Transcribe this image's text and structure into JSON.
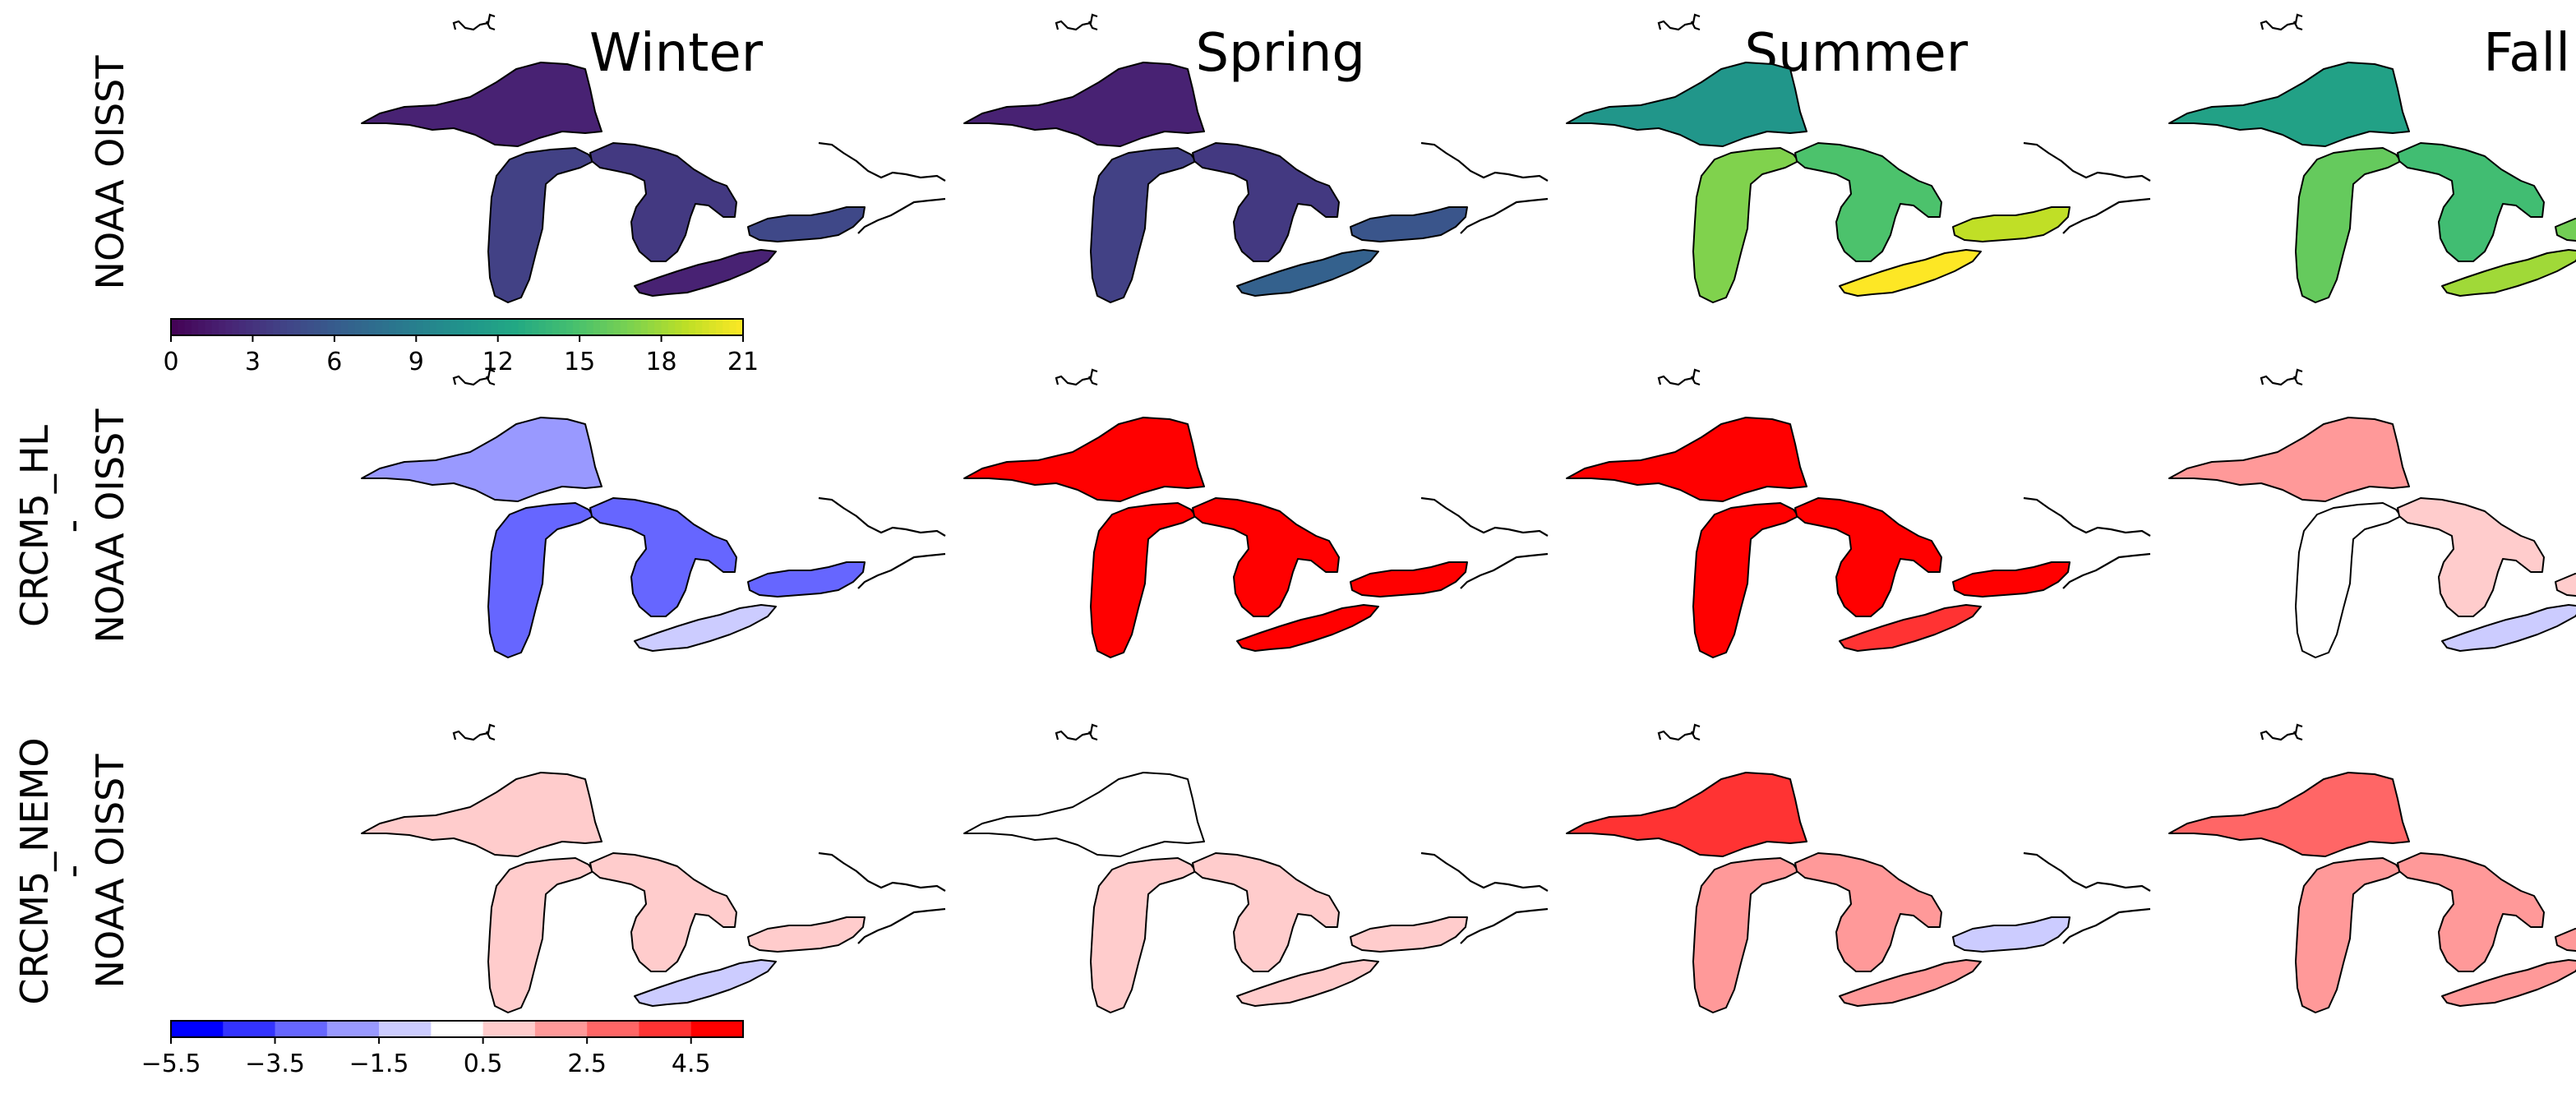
{
  "seasons": [
    "Winter",
    "Spring",
    "Summer",
    "Fall"
  ],
  "row_labels": [
    {
      "lines": [
        "NOAA OISST"
      ]
    },
    {
      "lines": [
        "CRCM5_HL",
        "-",
        "NOAA OISST"
      ]
    },
    {
      "lines": [
        "CRCM5_NEMO",
        "-",
        "NOAA OISST"
      ]
    }
  ],
  "lakes": [
    "Superior",
    "Michigan",
    "Huron",
    "Erie",
    "Ontario"
  ],
  "maps": [
    {
      "row": 0,
      "season": "Winter",
      "lake_values": {
        "Superior": 2.0,
        "Michigan": 4.0,
        "Huron": 3.5,
        "Erie": 2.0,
        "Ontario": 4.5
      }
    },
    {
      "row": 0,
      "season": "Spring",
      "lake_values": {
        "Superior": 2.0,
        "Michigan": 4.0,
        "Huron": 3.5,
        "Erie": 6.5,
        "Ontario": 5.5
      }
    },
    {
      "row": 0,
      "season": "Summer",
      "lake_values": {
        "Superior": 11.0,
        "Michigan": 17.0,
        "Huron": 15.0,
        "Erie": 21.0,
        "Ontario": 19.0
      }
    },
    {
      "row": 0,
      "season": "Fall",
      "lake_values": {
        "Superior": 12.0,
        "Michigan": 16.0,
        "Huron": 14.5,
        "Erie": 18.0,
        "Ontario": 16.5
      }
    },
    {
      "row": 1,
      "season": "Winter",
      "lake_values": {
        "Superior": -2.0,
        "Michigan": -2.8,
        "Huron": -2.8,
        "Erie": -1.0,
        "Ontario": -3.0
      }
    },
    {
      "row": 1,
      "season": "Spring",
      "lake_values": {
        "Superior": 5.5,
        "Michigan": 5.5,
        "Huron": 5.5,
        "Erie": 5.5,
        "Ontario": 5.5
      }
    },
    {
      "row": 1,
      "season": "Summer",
      "lake_values": {
        "Superior": 5.5,
        "Michigan": 5.5,
        "Huron": 5.5,
        "Erie": 3.8,
        "Ontario": 5.5
      }
    },
    {
      "row": 1,
      "season": "Fall",
      "lake_values": {
        "Superior": 2.0,
        "Michigan": 0.0,
        "Huron": 0.8,
        "Erie": -1.0,
        "Ontario": 0.8
      }
    },
    {
      "row": 2,
      "season": "Winter",
      "lake_values": {
        "Superior": 0.8,
        "Michigan": 1.0,
        "Huron": 1.0,
        "Erie": -0.8,
        "Ontario": 1.4
      }
    },
    {
      "row": 2,
      "season": "Spring",
      "lake_values": {
        "Superior": 0.3,
        "Michigan": 1.0,
        "Huron": 1.0,
        "Erie": 1.2,
        "Ontario": 1.0
      }
    },
    {
      "row": 2,
      "season": "Summer",
      "lake_values": {
        "Superior": 3.5,
        "Michigan": 1.8,
        "Huron": 1.8,
        "Erie": 2.0,
        "Ontario": -0.8
      }
    },
    {
      "row": 2,
      "season": "Fall",
      "lake_values": {
        "Superior": 2.5,
        "Michigan": 2.0,
        "Huron": 2.2,
        "Erie": 1.6,
        "Ontario": 1.6
      }
    }
  ],
  "colorbars": [
    {
      "name": "sst",
      "colormap": "viridis",
      "range": [
        0,
        21
      ],
      "ticks": [
        0,
        3,
        6,
        9,
        12,
        15,
        18,
        21
      ],
      "tick_labels": [
        "0",
        "3",
        "6",
        "9",
        "12",
        "15",
        "18",
        "21"
      ]
    },
    {
      "name": "difference",
      "colormap": "bwr",
      "range": [
        -5.5,
        5.5
      ],
      "levels": 11,
      "ticks": [
        -5.5,
        -3.5,
        -1.5,
        0.5,
        2.5,
        4.5
      ],
      "tick_labels": [
        "−5.5",
        "−3.5",
        "−1.5",
        "0.5",
        "2.5",
        "4.5"
      ]
    }
  ]
}
